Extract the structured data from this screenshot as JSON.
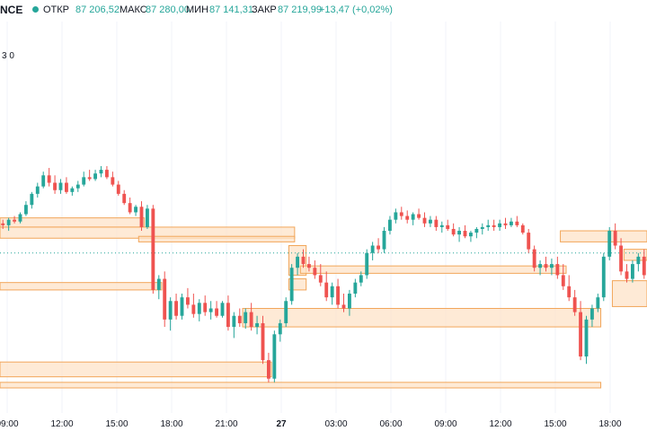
{
  "header": {
    "symbol": "NCE",
    "open_label": "ОТКР",
    "open_value": "87 206,52",
    "high_label": "МАКС",
    "high_value": "87 280,00",
    "low_label": "МИН",
    "low_value": "87 141,31",
    "close_label": "ЗАКР",
    "close_value": "87 219,99",
    "change": "+13,47 (+0,02%)"
  },
  "indicator_values": "3  0",
  "colors": {
    "up": "#26a69a",
    "down": "#ef5350",
    "zone_fill": "#fde3c8",
    "zone_border": "#f2a65a",
    "dotted_line": "#26a69a",
    "grid": "#f0f3fa",
    "axis_text": "#131722"
  },
  "time_axis": [
    "09:00",
    "12:00",
    "15:00",
    "18:00",
    "21:00",
    "27",
    "03:00",
    "06:00",
    "09:00",
    "12:00",
    "15:00",
    "18:00"
  ],
  "chart_data": {
    "type": "candlestick",
    "x_ticks": [
      "09:00",
      "12:00",
      "15:00",
      "18:00",
      "21:00",
      "27",
      "03:00",
      "06:00",
      "09:00",
      "12:00",
      "15:00",
      "18:00"
    ],
    "series": [
      {
        "candles": [
          {
            "o": 1.0,
            "h": 1.2,
            "l": 0.7,
            "c": 0.9
          },
          {
            "o": 0.9,
            "h": 1.3,
            "l": 0.6,
            "c": 1.2
          },
          {
            "o": 1.2,
            "h": 1.4,
            "l": 1.0,
            "c": 1.1
          },
          {
            "o": 1.1,
            "h": 1.6,
            "l": 1.0,
            "c": 1.5
          },
          {
            "o": 1.5,
            "h": 2.2,
            "l": 1.4,
            "c": 2.0
          },
          {
            "o": 2.0,
            "h": 2.7,
            "l": 1.8,
            "c": 2.6
          },
          {
            "o": 2.6,
            "h": 3.2,
            "l": 2.4,
            "c": 3.0
          },
          {
            "o": 3.0,
            "h": 3.8,
            "l": 2.9,
            "c": 3.6
          },
          {
            "o": 3.6,
            "h": 4.0,
            "l": 3.0,
            "c": 3.2
          },
          {
            "o": 3.2,
            "h": 3.6,
            "l": 2.6,
            "c": 2.8
          },
          {
            "o": 2.8,
            "h": 3.4,
            "l": 2.6,
            "c": 3.2
          },
          {
            "o": 3.2,
            "h": 3.5,
            "l": 2.6,
            "c": 2.7
          },
          {
            "o": 2.7,
            "h": 3.0,
            "l": 2.5,
            "c": 2.9
          },
          {
            "o": 2.9,
            "h": 3.3,
            "l": 2.7,
            "c": 3.1
          },
          {
            "o": 3.1,
            "h": 3.8,
            "l": 3.0,
            "c": 3.5
          },
          {
            "o": 3.5,
            "h": 3.9,
            "l": 3.3,
            "c": 3.4
          },
          {
            "o": 3.4,
            "h": 3.9,
            "l": 3.3,
            "c": 3.7
          },
          {
            "o": 3.7,
            "h": 4.1,
            "l": 3.5,
            "c": 3.9
          },
          {
            "o": 3.9,
            "h": 4.1,
            "l": 3.4,
            "c": 3.5
          },
          {
            "o": 3.5,
            "h": 3.8,
            "l": 3.0,
            "c": 3.1
          },
          {
            "o": 3.1,
            "h": 3.3,
            "l": 2.5,
            "c": 2.6
          },
          {
            "o": 2.6,
            "h": 2.8,
            "l": 2.0,
            "c": 2.1
          },
          {
            "o": 2.1,
            "h": 2.4,
            "l": 1.5,
            "c": 1.6
          },
          {
            "o": 1.6,
            "h": 2.0,
            "l": 1.4,
            "c": 1.9
          },
          {
            "o": 1.9,
            "h": 2.2,
            "l": 0.6,
            "c": 0.8
          },
          {
            "o": 0.8,
            "h": 2.0,
            "l": 0.7,
            "c": 1.8
          },
          {
            "o": 1.8,
            "h": 2.0,
            "l": -2.8,
            "c": -2.6
          },
          {
            "o": -2.6,
            "h": -1.8,
            "l": -3.1,
            "c": -2.0
          },
          {
            "o": -2.0,
            "h": -1.6,
            "l": -4.6,
            "c": -4.2
          },
          {
            "o": -4.2,
            "h": -3.0,
            "l": -4.8,
            "c": -3.2
          },
          {
            "o": -3.2,
            "h": -2.8,
            "l": -4.2,
            "c": -4.0
          },
          {
            "o": -4.0,
            "h": -2.8,
            "l": -4.2,
            "c": -3.0
          },
          {
            "o": -3.0,
            "h": -2.5,
            "l": -3.6,
            "c": -3.4
          },
          {
            "o": -3.4,
            "h": -2.8,
            "l": -4.1,
            "c": -3.9
          },
          {
            "o": -3.9,
            "h": -3.1,
            "l": -4.3,
            "c": -3.3
          },
          {
            "o": -3.3,
            "h": -2.9,
            "l": -4.0,
            "c": -3.8
          },
          {
            "o": -3.8,
            "h": -3.2,
            "l": -4.2,
            "c": -3.6
          },
          {
            "o": -3.6,
            "h": -3.2,
            "l": -4.1,
            "c": -4.0
          },
          {
            "o": -4.0,
            "h": -3.2,
            "l": -4.1,
            "c": -3.3
          },
          {
            "o": -3.3,
            "h": -2.9,
            "l": -4.8,
            "c": -4.6
          },
          {
            "o": -4.6,
            "h": -3.8,
            "l": -5.2,
            "c": -4.0
          },
          {
            "o": -4.0,
            "h": -3.6,
            "l": -4.6,
            "c": -4.4
          },
          {
            "o": -4.4,
            "h": -3.6,
            "l": -4.7,
            "c": -3.8
          },
          {
            "o": -3.8,
            "h": -3.3,
            "l": -4.8,
            "c": -4.6
          },
          {
            "o": -4.6,
            "h": -4.0,
            "l": -5.0,
            "c": -4.4
          },
          {
            "o": -4.4,
            "h": -4.0,
            "l": -6.6,
            "c": -6.4
          },
          {
            "o": -6.4,
            "h": -6.0,
            "l": -7.6,
            "c": -7.4
          },
          {
            "o": -7.4,
            "h": -4.8,
            "l": -7.6,
            "c": -5.0
          },
          {
            "o": -5.0,
            "h": -4.2,
            "l": -5.4,
            "c": -4.4
          },
          {
            "o": -4.4,
            "h": -3.0,
            "l": -4.6,
            "c": -3.2
          },
          {
            "o": -3.2,
            "h": -1.2,
            "l": -3.4,
            "c": -1.4
          },
          {
            "o": -1.4,
            "h": -0.6,
            "l": -1.8,
            "c": -0.8
          },
          {
            "o": -0.8,
            "h": -0.4,
            "l": -1.4,
            "c": -1.2
          },
          {
            "o": -1.2,
            "h": -0.8,
            "l": -1.6,
            "c": -1.4
          },
          {
            "o": -1.4,
            "h": -1.0,
            "l": -2.0,
            "c": -1.8
          },
          {
            "o": -1.8,
            "h": -1.2,
            "l": -2.4,
            "c": -2.2
          },
          {
            "o": -2.2,
            "h": -1.6,
            "l": -3.2,
            "c": -3.0
          },
          {
            "o": -3.0,
            "h": -2.2,
            "l": -3.4,
            "c": -2.4
          },
          {
            "o": -2.4,
            "h": -2.0,
            "l": -3.6,
            "c": -3.4
          },
          {
            "o": -3.4,
            "h": -2.8,
            "l": -3.8,
            "c": -3.6
          },
          {
            "o": -3.6,
            "h": -2.6,
            "l": -4.0,
            "c": -2.8
          },
          {
            "o": -2.8,
            "h": -2.0,
            "l": -3.0,
            "c": -2.2
          },
          {
            "o": -2.2,
            "h": -1.6,
            "l": -2.4,
            "c": -1.8
          },
          {
            "o": -1.8,
            "h": -0.4,
            "l": -2.0,
            "c": -0.6
          },
          {
            "o": -0.6,
            "h": 0.0,
            "l": -1.0,
            "c": -0.2
          },
          {
            "o": -0.2,
            "h": 0.2,
            "l": -0.6,
            "c": -0.4
          },
          {
            "o": -0.4,
            "h": 0.8,
            "l": -0.6,
            "c": 0.6
          },
          {
            "o": 0.6,
            "h": 1.4,
            "l": 0.4,
            "c": 1.2
          },
          {
            "o": 1.2,
            "h": 1.8,
            "l": 1.0,
            "c": 1.6
          },
          {
            "o": 1.6,
            "h": 1.9,
            "l": 1.2,
            "c": 1.4
          },
          {
            "o": 1.4,
            "h": 1.7,
            "l": 1.0,
            "c": 1.2
          },
          {
            "o": 1.2,
            "h": 1.6,
            "l": 0.9,
            "c": 1.5
          },
          {
            "o": 1.5,
            "h": 1.8,
            "l": 1.2,
            "c": 1.3
          },
          {
            "o": 1.3,
            "h": 1.6,
            "l": 0.8,
            "c": 1.0
          },
          {
            "o": 1.0,
            "h": 1.4,
            "l": 0.8,
            "c": 1.2
          },
          {
            "o": 1.2,
            "h": 1.4,
            "l": 0.6,
            "c": 0.8
          },
          {
            "o": 0.8,
            "h": 1.1,
            "l": 0.5,
            "c": 0.9
          },
          {
            "o": 0.9,
            "h": 1.2,
            "l": 0.6,
            "c": 0.7
          },
          {
            "o": 0.7,
            "h": 1.0,
            "l": 0.3,
            "c": 0.4
          },
          {
            "o": 0.4,
            "h": 0.8,
            "l": 0.0,
            "c": 0.6
          },
          {
            "o": 0.6,
            "h": 0.9,
            "l": 0.2,
            "c": 0.3
          },
          {
            "o": 0.3,
            "h": 0.6,
            "l": 0.0,
            "c": 0.5
          },
          {
            "o": 0.5,
            "h": 0.8,
            "l": 0.2,
            "c": 0.7
          },
          {
            "o": 0.7,
            "h": 1.0,
            "l": 0.4,
            "c": 0.8
          },
          {
            "o": 0.8,
            "h": 1.2,
            "l": 0.6,
            "c": 0.9
          },
          {
            "o": 0.9,
            "h": 1.2,
            "l": 0.6,
            "c": 0.8
          },
          {
            "o": 0.8,
            "h": 1.2,
            "l": 0.6,
            "c": 1.0
          },
          {
            "o": 1.0,
            "h": 1.3,
            "l": 0.7,
            "c": 0.9
          },
          {
            "o": 0.9,
            "h": 1.3,
            "l": 0.8,
            "c": 1.1
          },
          {
            "o": 1.1,
            "h": 1.4,
            "l": 0.8,
            "c": 0.9
          },
          {
            "o": 0.9,
            "h": 1.0,
            "l": 0.4,
            "c": 0.5
          },
          {
            "o": 0.5,
            "h": 0.7,
            "l": -0.6,
            "c": -0.4
          },
          {
            "o": -0.4,
            "h": -0.2,
            "l": -1.6,
            "c": -1.4
          },
          {
            "o": -1.4,
            "h": -1.0,
            "l": -1.8,
            "c": -1.2
          },
          {
            "o": -1.2,
            "h": -0.8,
            "l": -1.6,
            "c": -1.4
          },
          {
            "o": -1.4,
            "h": -0.9,
            "l": -1.8,
            "c": -1.2
          },
          {
            "o": -1.2,
            "h": -0.8,
            "l": -2.0,
            "c": -1.8
          },
          {
            "o": -1.8,
            "h": -1.2,
            "l": -2.6,
            "c": -2.4
          },
          {
            "o": -2.4,
            "h": -1.8,
            "l": -3.2,
            "c": -3.0
          },
          {
            "o": -3.0,
            "h": -2.6,
            "l": -4.0,
            "c": -3.8
          },
          {
            "o": -3.8,
            "h": -3.2,
            "l": -6.4,
            "c": -6.2
          },
          {
            "o": -6.2,
            "h": -4.0,
            "l": -6.6,
            "c": -4.2
          },
          {
            "o": -4.2,
            "h": -3.4,
            "l": -4.6,
            "c": -3.6
          },
          {
            "o": -3.6,
            "h": -2.8,
            "l": -3.8,
            "c": -3.0
          },
          {
            "o": -3.0,
            "h": -0.6,
            "l": -3.2,
            "c": -0.8
          },
          {
            "o": -0.8,
            "h": 0.8,
            "l": -1.0,
            "c": 0.6
          },
          {
            "o": 0.6,
            "h": 1.0,
            "l": -0.4,
            "c": -0.2
          },
          {
            "o": -0.2,
            "h": 0.2,
            "l": -1.8,
            "c": -1.6
          },
          {
            "o": -1.6,
            "h": -1.2,
            "l": -2.2,
            "c": -2.0
          },
          {
            "o": -2.0,
            "h": -1.0,
            "l": -2.2,
            "c": -1.2
          },
          {
            "o": -1.2,
            "h": -0.6,
            "l": -1.6,
            "c": -0.8
          },
          {
            "o": -0.8,
            "h": -0.4,
            "l": -2.0,
            "c": -1.8
          }
        ]
      }
    ],
    "zones": [
      {
        "start": 0,
        "end": 24,
        "top": 1.3,
        "bottom": 0.8
      },
      {
        "start": 0,
        "end": 50,
        "top": 0.8,
        "bottom": 0.2
      },
      {
        "start": 24,
        "end": 50,
        "top": 0.3,
        "bottom": 0.0
      },
      {
        "start": 0,
        "end": 27,
        "top": -2.2,
        "bottom": -2.6
      },
      {
        "start": 50,
        "end": 52,
        "top": -0.2,
        "bottom": -1.8
      },
      {
        "start": 50,
        "end": 52,
        "top": -2.0,
        "bottom": -2.6
      },
      {
        "start": 52,
        "end": 97,
        "top": -1.3,
        "bottom": -1.7
      },
      {
        "start": 42,
        "end": 103,
        "top": -3.6,
        "bottom": -4.6
      },
      {
        "start": 97,
        "end": 114,
        "top": 0.6,
        "bottom": 0.0
      },
      {
        "start": 108,
        "end": 114,
        "top": -0.4,
        "bottom": -1.0
      },
      {
        "start": 0,
        "end": 46,
        "top": -6.5,
        "bottom": -7.3
      },
      {
        "start": 0,
        "end": 103,
        "top": -7.6,
        "bottom": -7.9
      },
      {
        "start": 106,
        "end": 114,
        "top": -2.1,
        "bottom": -3.5
      }
    ],
    "dotted_line_value": -0.6
  }
}
